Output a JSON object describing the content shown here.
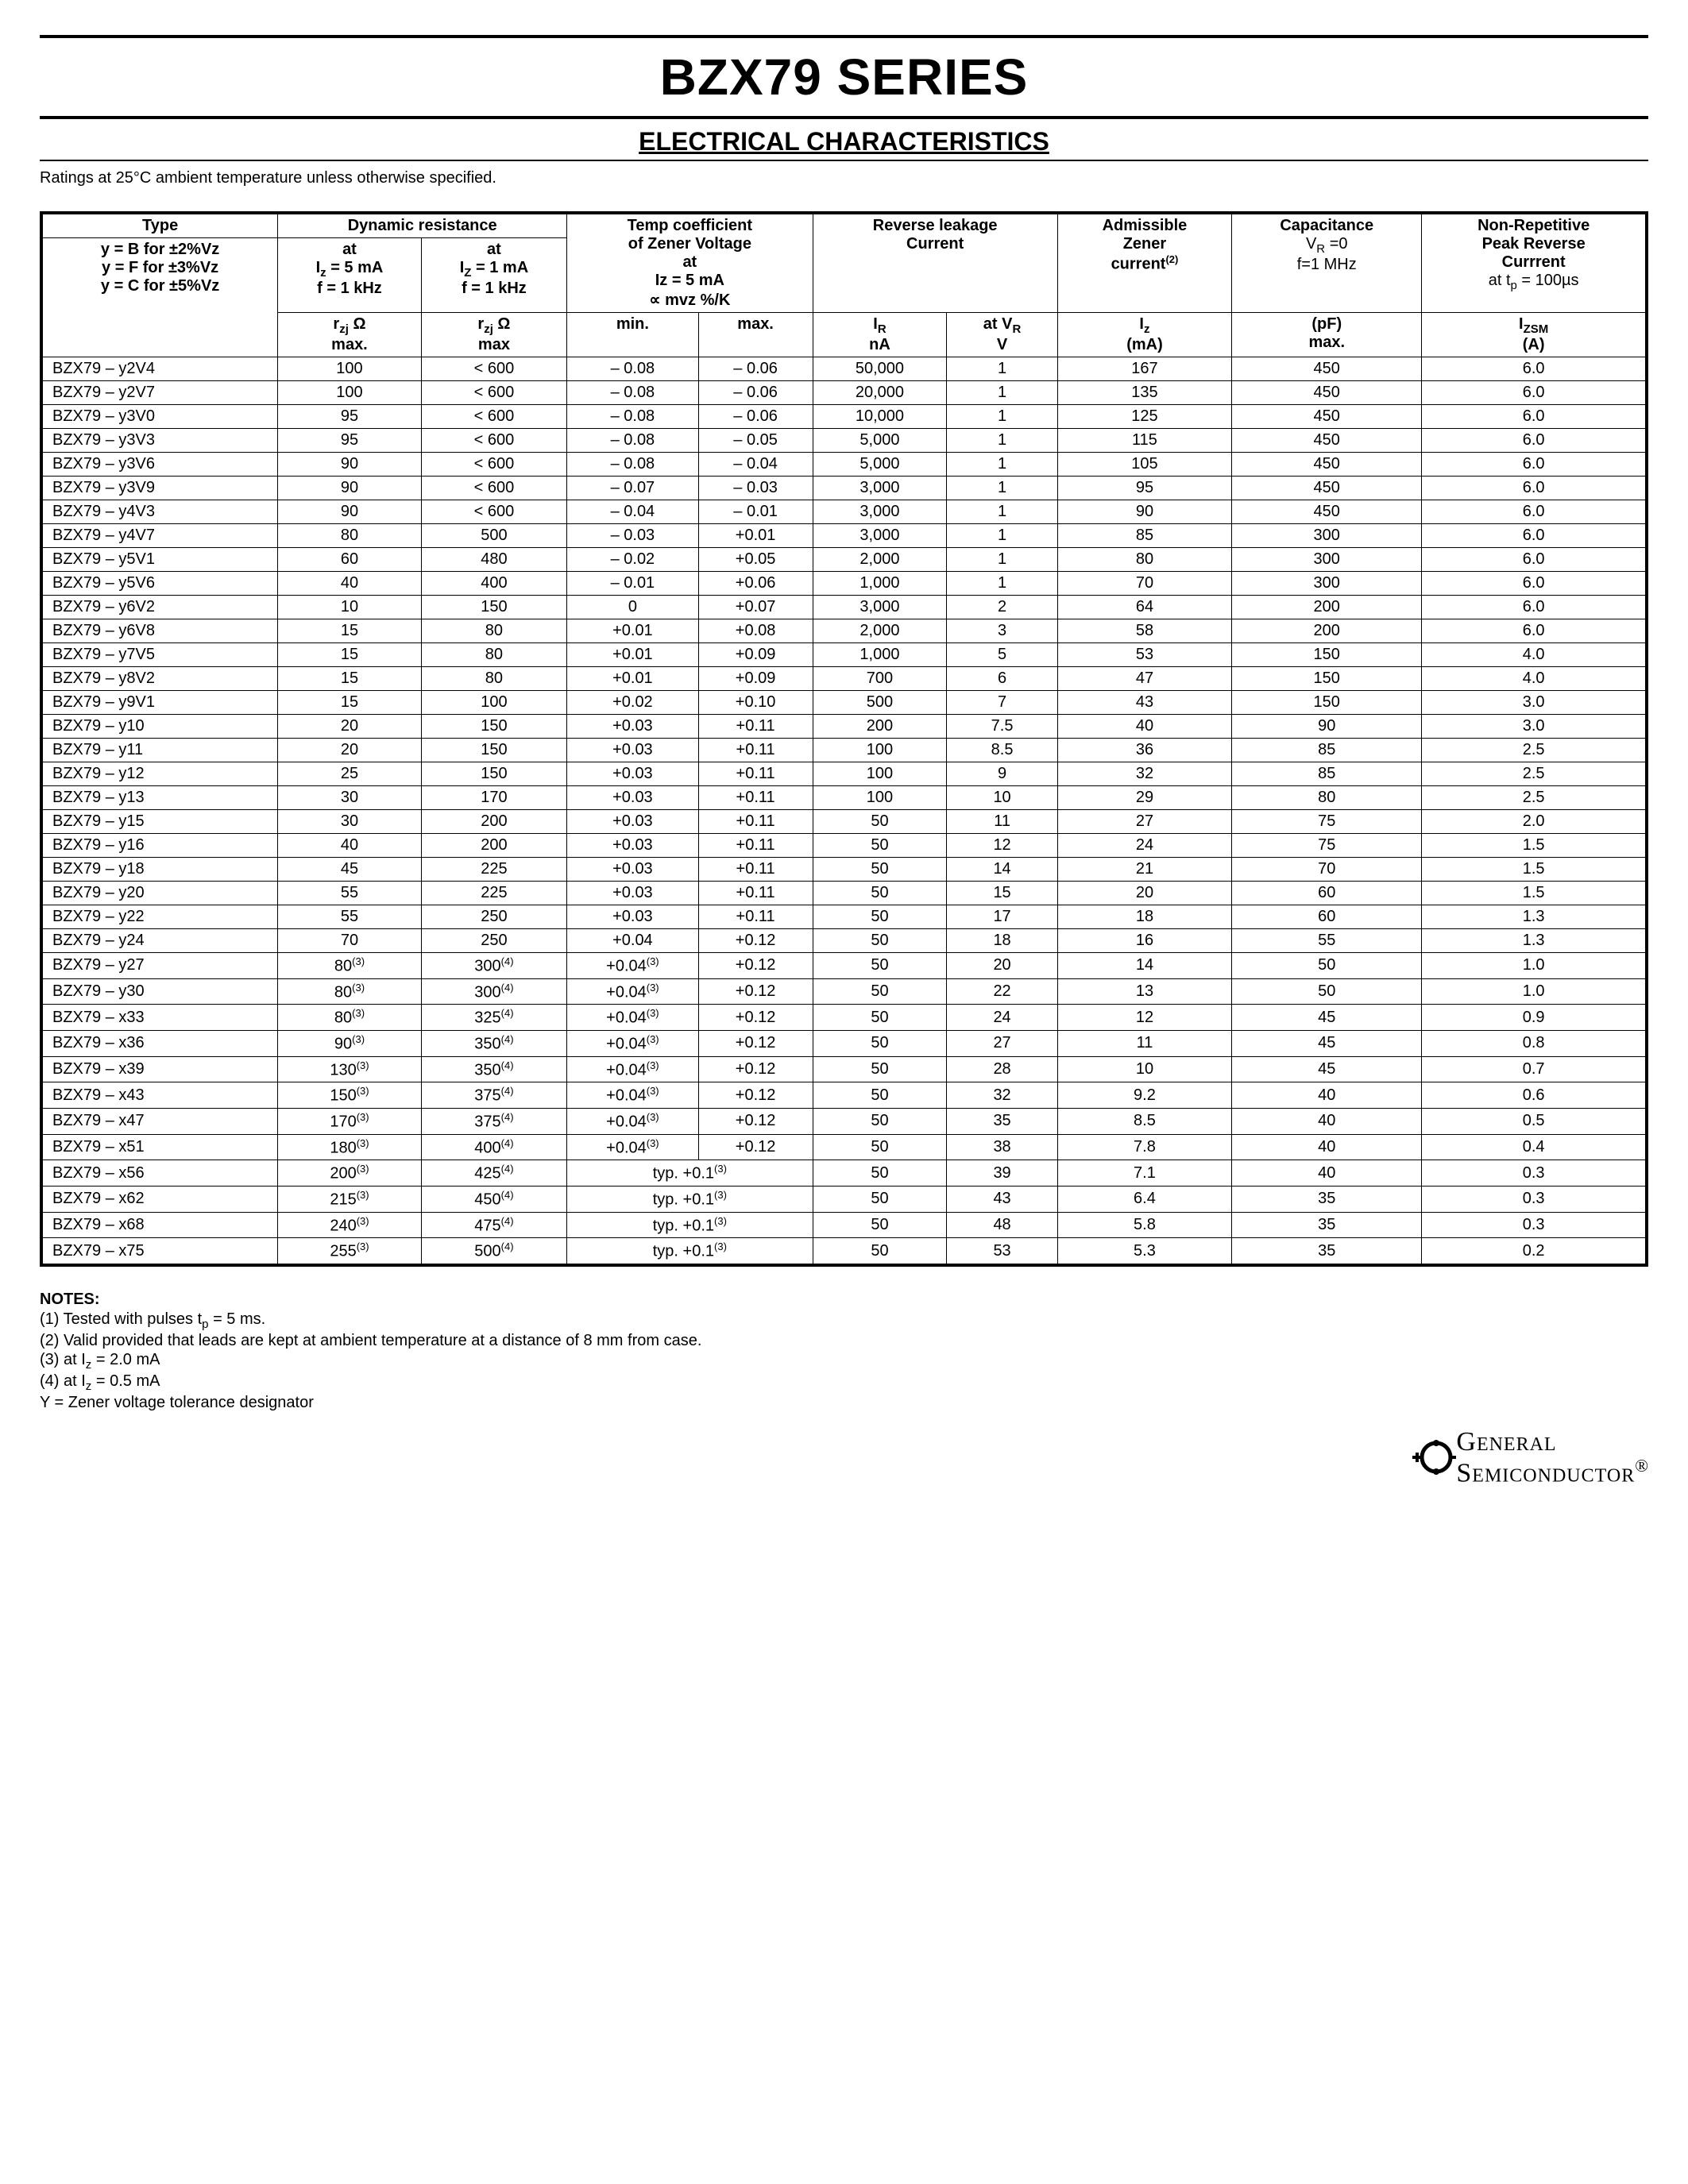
{
  "title": "BZX79 SERIES",
  "subtitle": "ELECTRICAL CHARACTERISTICS",
  "ratings_note": "Ratings at 25°C ambient temperature unless otherwise specified.",
  "headers": {
    "type": "Type",
    "type_legend_1": "y = B for ±2%Vz",
    "type_legend_2": "y = F for ±3%Vz",
    "type_legend_3": "y = C for ±5%Vz",
    "dyn": "Dynamic resistance",
    "dyn_at1_a": "at",
    "dyn_at1_b": "Iz = 5 mA",
    "dyn_at1_c": "f = 1 kHz",
    "dyn_at2_a": "at",
    "dyn_at2_b": "Iz = 1 mA",
    "dyn_at2_c": "f = 1 kHz",
    "dyn_r1": "rzj Ω",
    "dyn_r1_max": "max.",
    "dyn_r2": "rzj Ω",
    "dyn_r2_max": "max",
    "temp": "Temp coefficient",
    "temp_b": "of Zener Voltage",
    "temp_at": "at",
    "temp_iz": "Iz = 5 mA",
    "temp_mvz": "∝ mvz %/K",
    "temp_min": "min.",
    "temp_max": "max.",
    "rev": "Reverse leakage",
    "rev_b": "Current",
    "rev_ir": "IR",
    "rev_ir_u": "nA",
    "rev_vr": "at VR",
    "rev_vr_u": "V",
    "adm": "Admissible",
    "adm_b": "Zener",
    "adm_c": "current(2)",
    "adm_iz": "Iz",
    "adm_iz_u": "(mA)",
    "cap": "Capacitance",
    "cap_b": "VR =0",
    "cap_c": "f=1 MHz",
    "cap_pf": "(pF)",
    "cap_max": "max.",
    "nrp": "Non-Repetitive",
    "nrp_b": "Peak Reverse",
    "nrp_c": "Currrent",
    "nrp_d": "at tp = 100µs",
    "nrp_iz": "IZSM",
    "nrp_u": "(A)"
  },
  "rows": [
    {
      "type": "BZX79 – y2V4",
      "r5": "100",
      "r1": "< 600",
      "tmin": "– 0.08",
      "tmax": "– 0.06",
      "ir": "50,000",
      "vr": "1",
      "iz": "167",
      "pf": "450",
      "izsm": "6.0"
    },
    {
      "type": "BZX79 – y2V7",
      "r5": "100",
      "r1": "< 600",
      "tmin": "– 0.08",
      "tmax": "– 0.06",
      "ir": "20,000",
      "vr": "1",
      "iz": "135",
      "pf": "450",
      "izsm": "6.0"
    },
    {
      "type": "BZX79 – y3V0",
      "r5": "95",
      "r1": "< 600",
      "tmin": "– 0.08",
      "tmax": "– 0.06",
      "ir": "10,000",
      "vr": "1",
      "iz": "125",
      "pf": "450",
      "izsm": "6.0"
    },
    {
      "type": "BZX79 – y3V3",
      "r5": "95",
      "r1": "< 600",
      "tmin": "– 0.08",
      "tmax": "– 0.05",
      "ir": "5,000",
      "vr": "1",
      "iz": "115",
      "pf": "450",
      "izsm": "6.0"
    },
    {
      "type": "BZX79 – y3V6",
      "r5": "90",
      "r1": "< 600",
      "tmin": "– 0.08",
      "tmax": "– 0.04",
      "ir": "5,000",
      "vr": "1",
      "iz": "105",
      "pf": "450",
      "izsm": "6.0"
    },
    {
      "type": "BZX79 – y3V9",
      "r5": "90",
      "r1": "< 600",
      "tmin": "– 0.07",
      "tmax": "– 0.03",
      "ir": "3,000",
      "vr": "1",
      "iz": "95",
      "pf": "450",
      "izsm": "6.0"
    },
    {
      "type": "BZX79 – y4V3",
      "r5": "90",
      "r1": "< 600",
      "tmin": "– 0.04",
      "tmax": "– 0.01",
      "ir": "3,000",
      "vr": "1",
      "iz": "90",
      "pf": "450",
      "izsm": "6.0"
    },
    {
      "type": "BZX79 – y4V7",
      "r5": "80",
      "r1": "500",
      "tmin": "– 0.03",
      "tmax": "+0.01",
      "ir": "3,000",
      "vr": "1",
      "iz": "85",
      "pf": "300",
      "izsm": "6.0"
    },
    {
      "type": "BZX79 – y5V1",
      "r5": "60",
      "r1": "480",
      "tmin": "– 0.02",
      "tmax": "+0.05",
      "ir": "2,000",
      "vr": "1",
      "iz": "80",
      "pf": "300",
      "izsm": "6.0"
    },
    {
      "type": "BZX79 – y5V6",
      "r5": "40",
      "r1": "400",
      "tmin": "– 0.01",
      "tmax": "+0.06",
      "ir": "1,000",
      "vr": "1",
      "iz": "70",
      "pf": "300",
      "izsm": "6.0"
    },
    {
      "type": "BZX79 – y6V2",
      "r5": "10",
      "r1": "150",
      "tmin": "0",
      "tmax": "+0.07",
      "ir": "3,000",
      "vr": "2",
      "iz": "64",
      "pf": "200",
      "izsm": "6.0"
    },
    {
      "type": "BZX79 – y6V8",
      "r5": "15",
      "r1": "80",
      "tmin": "+0.01",
      "tmax": "+0.08",
      "ir": "2,000",
      "vr": "3",
      "iz": "58",
      "pf": "200",
      "izsm": "6.0"
    },
    {
      "type": "BZX79 – y7V5",
      "r5": "15",
      "r1": "80",
      "tmin": "+0.01",
      "tmax": "+0.09",
      "ir": "1,000",
      "vr": "5",
      "iz": "53",
      "pf": "150",
      "izsm": "4.0"
    },
    {
      "type": "BZX79 – y8V2",
      "r5": "15",
      "r1": "80",
      "tmin": "+0.01",
      "tmax": "+0.09",
      "ir": "700",
      "vr": "6",
      "iz": "47",
      "pf": "150",
      "izsm": "4.0"
    },
    {
      "type": "BZX79 – y9V1",
      "r5": "15",
      "r1": "100",
      "tmin": "+0.02",
      "tmax": "+0.10",
      "ir": "500",
      "vr": "7",
      "iz": "43",
      "pf": "150",
      "izsm": "3.0"
    },
    {
      "type": "BZX79 – y10",
      "r5": "20",
      "r1": "150",
      "tmin": "+0.03",
      "tmax": "+0.11",
      "ir": "200",
      "vr": "7.5",
      "iz": "40",
      "pf": "90",
      "izsm": "3.0"
    },
    {
      "type": "BZX79 – y11",
      "r5": "20",
      "r1": "150",
      "tmin": "+0.03",
      "tmax": "+0.11",
      "ir": "100",
      "vr": "8.5",
      "iz": "36",
      "pf": "85",
      "izsm": "2.5"
    },
    {
      "type": "BZX79 – y12",
      "r5": "25",
      "r1": "150",
      "tmin": "+0.03",
      "tmax": "+0.11",
      "ir": "100",
      "vr": "9",
      "iz": "32",
      "pf": "85",
      "izsm": "2.5"
    },
    {
      "type": "BZX79 – y13",
      "r5": "30",
      "r1": "170",
      "tmin": "+0.03",
      "tmax": "+0.11",
      "ir": "100",
      "vr": "10",
      "iz": "29",
      "pf": "80",
      "izsm": "2.5"
    },
    {
      "type": "BZX79 – y15",
      "r5": "30",
      "r1": "200",
      "tmin": "+0.03",
      "tmax": "+0.11",
      "ir": "50",
      "vr": "11",
      "iz": "27",
      "pf": "75",
      "izsm": "2.0"
    },
    {
      "type": "BZX79 – y16",
      "r5": "40",
      "r1": "200",
      "tmin": "+0.03",
      "tmax": "+0.11",
      "ir": "50",
      "vr": "12",
      "iz": "24",
      "pf": "75",
      "izsm": "1.5"
    },
    {
      "type": "BZX79 – y18",
      "r5": "45",
      "r1": "225",
      "tmin": "+0.03",
      "tmax": "+0.11",
      "ir": "50",
      "vr": "14",
      "iz": "21",
      "pf": "70",
      "izsm": "1.5"
    },
    {
      "type": "BZX79 – y20",
      "r5": "55",
      "r1": "225",
      "tmin": "+0.03",
      "tmax": "+0.11",
      "ir": "50",
      "vr": "15",
      "iz": "20",
      "pf": "60",
      "izsm": "1.5"
    },
    {
      "type": "BZX79 – y22",
      "r5": "55",
      "r1": "250",
      "tmin": "+0.03",
      "tmax": "+0.11",
      "ir": "50",
      "vr": "17",
      "iz": "18",
      "pf": "60",
      "izsm": "1.3"
    },
    {
      "type": "BZX79 – y24",
      "r5": "70",
      "r1": "250",
      "tmin": "+0.04",
      "tmax": "+0.12",
      "ir": "50",
      "vr": "18",
      "iz": "16",
      "pf": "55",
      "izsm": "1.3"
    },
    {
      "type": "BZX79 – y27",
      "r5": "80<sup>(3)</sup>",
      "r1": "300<sup>(4)</sup>",
      "tmin": "+0.04<sup>(3)</sup>",
      "tmax": "+0.12",
      "ir": "50",
      "vr": "20",
      "iz": "14",
      "pf": "50",
      "izsm": "1.0"
    },
    {
      "type": "BZX79 – y30",
      "r5": "80<sup>(3)</sup>",
      "r1": "300<sup>(4)</sup>",
      "tmin": "+0.04<sup>(3)</sup>",
      "tmax": "+0.12",
      "ir": "50",
      "vr": "22",
      "iz": "13",
      "pf": "50",
      "izsm": "1.0"
    },
    {
      "type": "BZX79 – x33",
      "r5": "80<sup>(3)</sup>",
      "r1": "325<sup>(4)</sup>",
      "tmin": "+0.04<sup>(3)</sup>",
      "tmax": "+0.12",
      "ir": "50",
      "vr": "24",
      "iz": "12",
      "pf": "45",
      "izsm": "0.9"
    },
    {
      "type": "BZX79 – x36",
      "r5": "90<sup>(3)</sup>",
      "r1": "350<sup>(4)</sup>",
      "tmin": "+0.04<sup>(3)</sup>",
      "tmax": "+0.12",
      "ir": "50",
      "vr": "27",
      "iz": "11",
      "pf": "45",
      "izsm": "0.8"
    },
    {
      "type": "BZX79 – x39",
      "r5": "130<sup>(3)</sup>",
      "r1": "350<sup>(4)</sup>",
      "tmin": "+0.04<sup>(3)</sup>",
      "tmax": "+0.12",
      "ir": "50",
      "vr": "28",
      "iz": "10",
      "pf": "45",
      "izsm": "0.7"
    },
    {
      "type": "BZX79 – x43",
      "r5": "150<sup>(3)</sup>",
      "r1": "375<sup>(4)</sup>",
      "tmin": "+0.04<sup>(3)</sup>",
      "tmax": "+0.12",
      "ir": "50",
      "vr": "32",
      "iz": "9.2",
      "pf": "40",
      "izsm": "0.6"
    },
    {
      "type": "BZX79 – x47",
      "r5": "170<sup>(3)</sup>",
      "r1": "375<sup>(4)</sup>",
      "tmin": "+0.04<sup>(3)</sup>",
      "tmax": "+0.12",
      "ir": "50",
      "vr": "35",
      "iz": "8.5",
      "pf": "40",
      "izsm": "0.5"
    },
    {
      "type": "BZX79 – x51",
      "r5": "180<sup>(3)</sup>",
      "r1": "400<sup>(4)</sup>",
      "tmin": "+0.04<sup>(3)</sup>",
      "tmax": "+0.12",
      "ir": "50",
      "vr": "38",
      "iz": "7.8",
      "pf": "40",
      "izsm": "0.4"
    },
    {
      "type": "BZX79 – x56",
      "r5": "200<sup>(3)</sup>",
      "r1": "425<sup>(4)</sup>",
      "typ": "typ. +0.1<sup>(3)</sup>",
      "ir": "50",
      "vr": "39",
      "iz": "7.1",
      "pf": "40",
      "izsm": "0.3"
    },
    {
      "type": "BZX79 – x62",
      "r5": "215<sup>(3)</sup>",
      "r1": "450<sup>(4)</sup>",
      "typ": "typ. +0.1<sup>(3)</sup>",
      "ir": "50",
      "vr": "43",
      "iz": "6.4",
      "pf": "35",
      "izsm": "0.3"
    },
    {
      "type": "BZX79 – x68",
      "r5": "240<sup>(3)</sup>",
      "r1": "475<sup>(4)</sup>",
      "typ": "typ. +0.1<sup>(3)</sup>",
      "ir": "50",
      "vr": "48",
      "iz": "5.8",
      "pf": "35",
      "izsm": "0.3"
    },
    {
      "type": "BZX79 – x75",
      "r5": "255<sup>(3)</sup>",
      "r1": "500<sup>(4)</sup>",
      "typ": "typ. +0.1<sup>(3)</sup>",
      "ir": "50",
      "vr": "53",
      "iz": "5.3",
      "pf": "35",
      "izsm": "0.2"
    }
  ],
  "notes": {
    "title": "NOTES:",
    "n1": "(1) Tested with pulses tp = 5 ms.",
    "n2": "(2) Valid provided that leads are kept at ambient temperature at a distance of 8 mm from case.",
    "n3": "(3) at Iz = 2.0 mA",
    "n4": "(4) at Iz = 0.5 mA",
    "n5": "Y = Zener voltage tolerance designator"
  },
  "logo": {
    "line1": "General",
    "line2": "Semiconductor",
    "reg": "®"
  }
}
